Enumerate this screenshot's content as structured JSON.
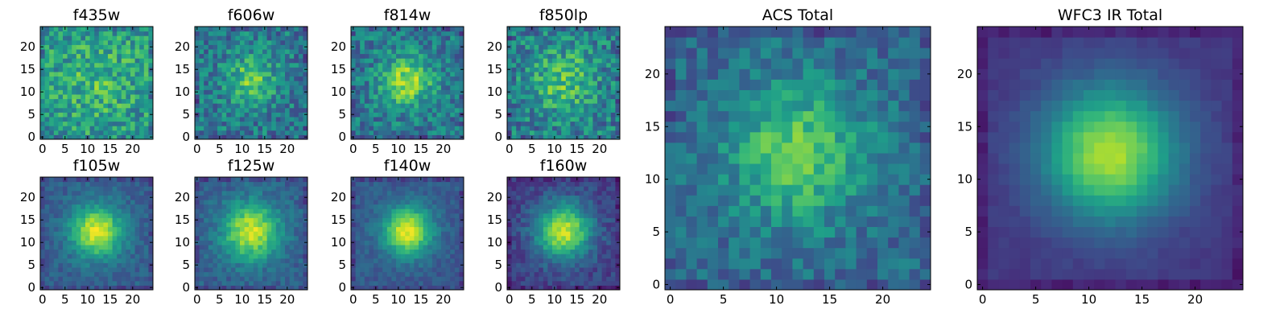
{
  "chart_data": {
    "type": "heatmap",
    "colormap": "viridis",
    "grid": false,
    "axis_range": [
      0,
      24
    ],
    "panels": [
      {
        "title": "f435w",
        "seed": 11,
        "peak": 0.15,
        "noise": 0.42,
        "base": 0.52,
        "sigma": 6,
        "xticks": [
          0,
          5,
          10,
          15,
          20
        ],
        "yticks": [
          0,
          5,
          10,
          15,
          20
        ]
      },
      {
        "title": "f606w",
        "seed": 23,
        "peak": 0.35,
        "noise": 0.38,
        "base": 0.4,
        "sigma": 4,
        "xticks": [
          0,
          5,
          10,
          15,
          20
        ],
        "yticks": [
          0,
          5,
          10,
          15,
          20
        ]
      },
      {
        "title": "f814w",
        "seed": 37,
        "peak": 0.45,
        "noise": 0.36,
        "base": 0.4,
        "sigma": 4,
        "xticks": [
          0,
          5,
          10,
          15,
          20
        ],
        "yticks": [
          0,
          5,
          10,
          15,
          20
        ]
      },
      {
        "title": "f850lp",
        "seed": 41,
        "peak": 0.3,
        "noise": 0.42,
        "base": 0.42,
        "sigma": 5,
        "xticks": [
          0,
          5,
          10,
          15,
          20
        ],
        "yticks": [
          0,
          5,
          10,
          15,
          20
        ]
      },
      {
        "title": "f105w",
        "seed": 53,
        "peak": 0.65,
        "noise": 0.16,
        "base": 0.3,
        "sigma": 4,
        "xticks": [
          0,
          5,
          10,
          15,
          20
        ],
        "yticks": [
          0,
          5,
          10,
          15,
          20
        ]
      },
      {
        "title": "f125w",
        "seed": 61,
        "peak": 0.62,
        "noise": 0.18,
        "base": 0.3,
        "sigma": 4.5,
        "xticks": [
          0,
          5,
          10,
          15,
          20
        ],
        "yticks": [
          0,
          5,
          10,
          15,
          20
        ]
      },
      {
        "title": "f140w",
        "seed": 71,
        "peak": 0.68,
        "noise": 0.14,
        "base": 0.28,
        "sigma": 3.8,
        "xticks": [
          0,
          5,
          10,
          15,
          20
        ],
        "yticks": [
          0,
          5,
          10,
          15,
          20
        ]
      },
      {
        "title": "f160w",
        "seed": 83,
        "peak": 0.72,
        "noise": 0.18,
        "base": 0.2,
        "sigma": 4.2,
        "xticks": [
          0,
          5,
          10,
          15,
          20
        ],
        "yticks": [
          0,
          5,
          10,
          15,
          20
        ]
      },
      {
        "title": "ACS Total",
        "seed": 97,
        "peak": 0.42,
        "noise": 0.26,
        "base": 0.34,
        "sigma": 4.5,
        "xticks": [
          0,
          5,
          10,
          15,
          20
        ],
        "yticks": [
          0,
          5,
          10,
          15,
          20
        ]
      },
      {
        "title": "WFC3 IR Total",
        "seed": 101,
        "peak": 0.72,
        "noise": 0.05,
        "base": 0.16,
        "sigma": 4.5,
        "xticks": [
          0,
          5,
          10,
          15,
          20
        ],
        "yticks": [
          0,
          5,
          10,
          15,
          20
        ]
      }
    ]
  }
}
